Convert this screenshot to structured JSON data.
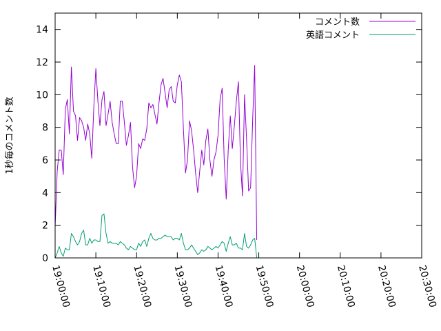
{
  "chart_data": {
    "type": "line",
    "title": "",
    "xlabel": "",
    "ylabel": "1秒毎のコメント数",
    "ylim": [
      0,
      15
    ],
    "yticks": [
      0,
      2,
      4,
      6,
      8,
      10,
      12,
      14
    ],
    "xlim": [
      "19:00:00",
      "20:30:00"
    ],
    "xticks": [
      "19:00:00",
      "19:10:00",
      "19:20:00",
      "19:30:00",
      "19:40:00",
      "19:50:00",
      "20:00:00",
      "20:10:00",
      "20:20:00",
      "20:30:00"
    ],
    "legend_position": "top-right",
    "grid": false,
    "series": [
      {
        "name": "コメント数",
        "color": "#9400d3",
        "points": [
          [
            "19:00:00",
            1.9
          ],
          [
            "19:00:30",
            5.3
          ],
          [
            "19:01:00",
            6.6
          ],
          [
            "19:01:30",
            6.6
          ],
          [
            "19:02:00",
            5.1
          ],
          [
            "19:02:30",
            9.1
          ],
          [
            "19:03:00",
            9.7
          ],
          [
            "19:03:30",
            7.6
          ],
          [
            "19:04:00",
            11.7
          ],
          [
            "19:04:30",
            9.0
          ],
          [
            "19:05:00",
            8.7
          ],
          [
            "19:05:30",
            7.2
          ],
          [
            "19:06:00",
            8.6
          ],
          [
            "19:06:30",
            8.4
          ],
          [
            "19:07:00",
            8.0
          ],
          [
            "19:07:30",
            7.2
          ],
          [
            "19:08:00",
            8.2
          ],
          [
            "19:08:30",
            7.6
          ],
          [
            "19:09:00",
            6.1
          ],
          [
            "19:09:30",
            9.3
          ],
          [
            "19:10:00",
            11.6
          ],
          [
            "19:10:30",
            9.6
          ],
          [
            "19:11:00",
            8.1
          ],
          [
            "19:11:30",
            9.7
          ],
          [
            "19:12:00",
            10.2
          ],
          [
            "19:12:30",
            8.1
          ],
          [
            "19:13:00",
            8.8
          ],
          [
            "19:13:30",
            9.6
          ],
          [
            "19:14:00",
            8.3
          ],
          [
            "19:14:30",
            7.6
          ],
          [
            "19:15:00",
            7.0
          ],
          [
            "19:15:30",
            7.0
          ],
          [
            "19:16:00",
            9.6
          ],
          [
            "19:16:30",
            9.6
          ],
          [
            "19:17:00",
            8.3
          ],
          [
            "19:17:30",
            6.9
          ],
          [
            "19:18:00",
            7.5
          ],
          [
            "19:18:30",
            8.3
          ],
          [
            "19:19:00",
            5.6
          ],
          [
            "19:19:30",
            4.3
          ],
          [
            "19:20:00",
            5.0
          ],
          [
            "19:20:30",
            7.0
          ],
          [
            "19:21:00",
            6.7
          ],
          [
            "19:21:30",
            7.3
          ],
          [
            "19:22:00",
            7.2
          ],
          [
            "19:22:30",
            7.9
          ],
          [
            "19:23:00",
            9.5
          ],
          [
            "19:23:30",
            9.2
          ],
          [
            "19:24:00",
            9.4
          ],
          [
            "19:24:30",
            8.8
          ],
          [
            "19:25:00",
            8.2
          ],
          [
            "19:25:30",
            9.5
          ],
          [
            "19:26:00",
            10.6
          ],
          [
            "19:26:30",
            11.0
          ],
          [
            "19:27:00",
            10.1
          ],
          [
            "19:27:30",
            9.2
          ],
          [
            "19:28:00",
            10.3
          ],
          [
            "19:28:30",
            10.5
          ],
          [
            "19:29:00",
            9.6
          ],
          [
            "19:29:30",
            9.5
          ],
          [
            "19:30:00",
            10.6
          ],
          [
            "19:30:30",
            11.2
          ],
          [
            "19:31:00",
            10.8
          ],
          [
            "19:31:30",
            7.9
          ],
          [
            "19:32:00",
            5.2
          ],
          [
            "19:32:30",
            6.0
          ],
          [
            "19:33:00",
            8.4
          ],
          [
            "19:33:30",
            7.8
          ],
          [
            "19:34:00",
            6.6
          ],
          [
            "19:34:30",
            5.2
          ],
          [
            "19:35:00",
            4.0
          ],
          [
            "19:35:30",
            5.3
          ],
          [
            "19:36:00",
            6.6
          ],
          [
            "19:36:30",
            5.7
          ],
          [
            "19:37:00",
            7.2
          ],
          [
            "19:37:30",
            7.9
          ],
          [
            "19:38:00",
            6.0
          ],
          [
            "19:38:30",
            5.0
          ],
          [
            "19:39:00",
            6.0
          ],
          [
            "19:39:30",
            6.5
          ],
          [
            "19:40:00",
            7.5
          ],
          [
            "19:40:30",
            9.7
          ],
          [
            "19:41:00",
            10.4
          ],
          [
            "19:41:30",
            6.1
          ],
          [
            "19:42:00",
            3.6
          ],
          [
            "19:42:30",
            6.6
          ],
          [
            "19:43:00",
            8.7
          ],
          [
            "19:43:30",
            6.7
          ],
          [
            "19:44:00",
            8.1
          ],
          [
            "19:44:30",
            9.6
          ],
          [
            "19:45:00",
            10.8
          ],
          [
            "19:45:30",
            5.9
          ],
          [
            "19:46:00",
            3.8
          ],
          [
            "19:46:30",
            10.0
          ],
          [
            "19:47:00",
            7.3
          ],
          [
            "19:47:30",
            4.1
          ],
          [
            "19:48:00",
            4.3
          ],
          [
            "19:48:30",
            8.5
          ],
          [
            "19:49:00",
            11.8
          ],
          [
            "19:49:30",
            1.1
          ]
        ]
      },
      {
        "name": "英語コメント",
        "color": "#009e73",
        "points": [
          [
            "19:00:00",
            0.0
          ],
          [
            "19:00:30",
            0.3
          ],
          [
            "19:01:00",
            0.7
          ],
          [
            "19:01:30",
            0.3
          ],
          [
            "19:02:00",
            0.1
          ],
          [
            "19:02:30",
            0.6
          ],
          [
            "19:03:00",
            0.5
          ],
          [
            "19:03:30",
            0.5
          ],
          [
            "19:04:00",
            1.5
          ],
          [
            "19:04:30",
            1.3
          ],
          [
            "19:05:00",
            1.0
          ],
          [
            "19:05:30",
            0.8
          ],
          [
            "19:06:00",
            1.0
          ],
          [
            "19:06:30",
            1.5
          ],
          [
            "19:07:00",
            1.7
          ],
          [
            "19:07:30",
            0.8
          ],
          [
            "19:08:00",
            0.8
          ],
          [
            "19:08:30",
            1.2
          ],
          [
            "19:09:00",
            0.9
          ],
          [
            "19:09:30",
            1.1
          ],
          [
            "19:10:00",
            1.1
          ],
          [
            "19:10:30",
            1.0
          ],
          [
            "19:11:00",
            1.0
          ],
          [
            "19:11:30",
            2.6
          ],
          [
            "19:12:00",
            2.7
          ],
          [
            "19:12:30",
            1.5
          ],
          [
            "19:13:00",
            0.9
          ],
          [
            "19:13:30",
            1.0
          ],
          [
            "19:14:00",
            0.9
          ],
          [
            "19:14:30",
            0.9
          ],
          [
            "19:15:00",
            0.9
          ],
          [
            "19:15:30",
            0.8
          ],
          [
            "19:16:00",
            1.0
          ],
          [
            "19:16:30",
            0.9
          ],
          [
            "19:17:00",
            0.8
          ],
          [
            "19:17:30",
            0.6
          ],
          [
            "19:18:00",
            0.5
          ],
          [
            "19:18:30",
            0.7
          ],
          [
            "19:19:00",
            0.6
          ],
          [
            "19:19:30",
            0.5
          ],
          [
            "19:20:00",
            0.5
          ],
          [
            "19:20:30",
            0.9
          ],
          [
            "19:21:00",
            0.7
          ],
          [
            "19:21:30",
            1.0
          ],
          [
            "19:22:00",
            1.1
          ],
          [
            "19:22:30",
            0.7
          ],
          [
            "19:23:00",
            1.2
          ],
          [
            "19:23:30",
            1.5
          ],
          [
            "19:24:00",
            1.2
          ],
          [
            "19:24:30",
            1.1
          ],
          [
            "19:25:00",
            1.1
          ],
          [
            "19:25:30",
            1.2
          ],
          [
            "19:26:00",
            1.2
          ],
          [
            "19:26:30",
            1.3
          ],
          [
            "19:27:00",
            1.4
          ],
          [
            "19:27:30",
            1.3
          ],
          [
            "19:28:00",
            1.3
          ],
          [
            "19:28:30",
            1.3
          ],
          [
            "19:29:00",
            1.1
          ],
          [
            "19:29:30",
            1.2
          ],
          [
            "19:30:00",
            1.2
          ],
          [
            "19:30:30",
            1.1
          ],
          [
            "19:31:00",
            1.5
          ],
          [
            "19:31:30",
            0.9
          ],
          [
            "19:32:00",
            0.5
          ],
          [
            "19:32:30",
            0.5
          ],
          [
            "19:33:00",
            0.6
          ],
          [
            "19:33:30",
            0.8
          ],
          [
            "19:34:00",
            0.6
          ],
          [
            "19:34:30",
            0.4
          ],
          [
            "19:35:00",
            0.2
          ],
          [
            "19:35:30",
            0.3
          ],
          [
            "19:36:00",
            0.5
          ],
          [
            "19:36:30",
            0.4
          ],
          [
            "19:37:00",
            0.5
          ],
          [
            "19:37:30",
            0.7
          ],
          [
            "19:38:00",
            0.6
          ],
          [
            "19:38:30",
            0.5
          ],
          [
            "19:39:00",
            0.6
          ],
          [
            "19:39:30",
            0.7
          ],
          [
            "19:40:00",
            0.6
          ],
          [
            "19:40:30",
            0.8
          ],
          [
            "19:41:00",
            1.0
          ],
          [
            "19:41:30",
            0.9
          ],
          [
            "19:42:00",
            0.4
          ],
          [
            "19:42:30",
            0.9
          ],
          [
            "19:43:00",
            1.3
          ],
          [
            "19:43:30",
            0.8
          ],
          [
            "19:44:00",
            0.8
          ],
          [
            "19:44:30",
            0.9
          ],
          [
            "19:45:00",
            0.6
          ],
          [
            "19:45:30",
            0.6
          ],
          [
            "19:46:00",
            0.5
          ],
          [
            "19:46:30",
            1.5
          ],
          [
            "19:47:00",
            0.7
          ],
          [
            "19:47:30",
            0.6
          ],
          [
            "19:48:00",
            0.8
          ],
          [
            "19:48:30",
            1.1
          ],
          [
            "19:49:00",
            1.2
          ],
          [
            "19:49:30",
            0.0
          ]
        ]
      }
    ]
  }
}
